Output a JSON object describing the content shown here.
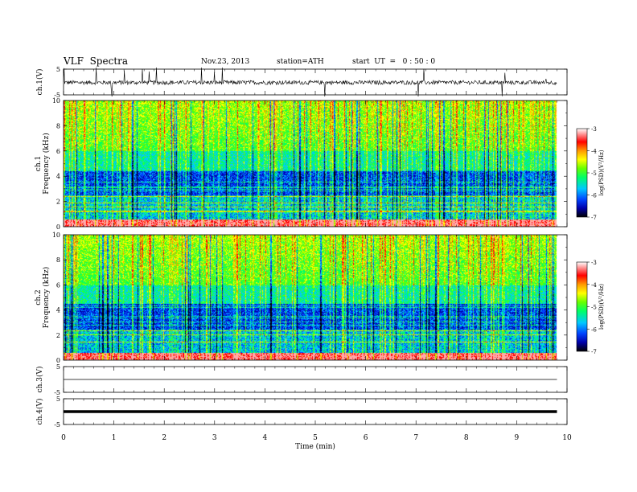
{
  "header": {
    "title": "VLF  Spectra",
    "date": "Nov.23, 2013",
    "station": "station=ATH",
    "start": "start  UT  =   0 : 50 : 0"
  },
  "chart_data": [
    {
      "type": "line",
      "panel": "ch1-waveform",
      "ylabel": "ch.1(V)",
      "ylim": [
        -5,
        5
      ],
      "yticks": [
        "5",
        "-5"
      ],
      "xlim": [
        0,
        10
      ],
      "color": "#000000"
    },
    {
      "type": "heatmap",
      "panel": "ch1-spectrogram",
      "ylabel": "ch.1  Frequency (kHz)",
      "ylim": [
        0,
        10
      ],
      "yticks": [
        "0",
        "2",
        "4",
        "6",
        "8",
        "10"
      ],
      "xlim": [
        0,
        10
      ],
      "data_end_min": 9.8,
      "colorbar": {
        "label": "log(PSD)(V²/Hz)",
        "range": [
          -7,
          -3
        ],
        "ticks": [
          "-3",
          "-4",
          "-5",
          "-6",
          "-7"
        ],
        "colors": [
          "#000000",
          "#0000aa",
          "#0044ff",
          "#00c8ff",
          "#00ff66",
          "#66ff00",
          "#ffff00",
          "#ff9900",
          "#ff0000",
          "#ffaaaa",
          "#ffffff"
        ]
      }
    },
    {
      "type": "heatmap",
      "panel": "ch2-spectrogram",
      "ylabel": "ch.2  Frequency (kHz)",
      "ylim": [
        0,
        10
      ],
      "yticks": [
        "0",
        "2",
        "4",
        "6",
        "8",
        "10"
      ],
      "xlim": [
        0,
        10
      ],
      "data_end_min": 9.8,
      "colorbar": {
        "label": "log(PSD)(V²/Hz)",
        "range": [
          -7,
          -3
        ],
        "ticks": [
          "-3",
          "-4",
          "-5",
          "-6",
          "-7"
        ]
      }
    },
    {
      "type": "line",
      "panel": "ch3-waveform",
      "ylabel": "ch.3(V)",
      "ylim": [
        -5,
        5
      ],
      "yticks": [
        "5",
        "-5"
      ],
      "xlim": [
        0,
        10
      ]
    },
    {
      "type": "line",
      "panel": "ch4-waveform",
      "ylabel": "ch.4(V)",
      "ylim": [
        -5,
        5
      ],
      "yticks": [
        "5",
        "-5"
      ],
      "xlim": [
        0,
        10
      ],
      "xlabel": "Time  (min)",
      "xticks": [
        "0",
        "1",
        "2",
        "3",
        "4",
        "5",
        "6",
        "7",
        "8",
        "9",
        "10"
      ]
    }
  ]
}
